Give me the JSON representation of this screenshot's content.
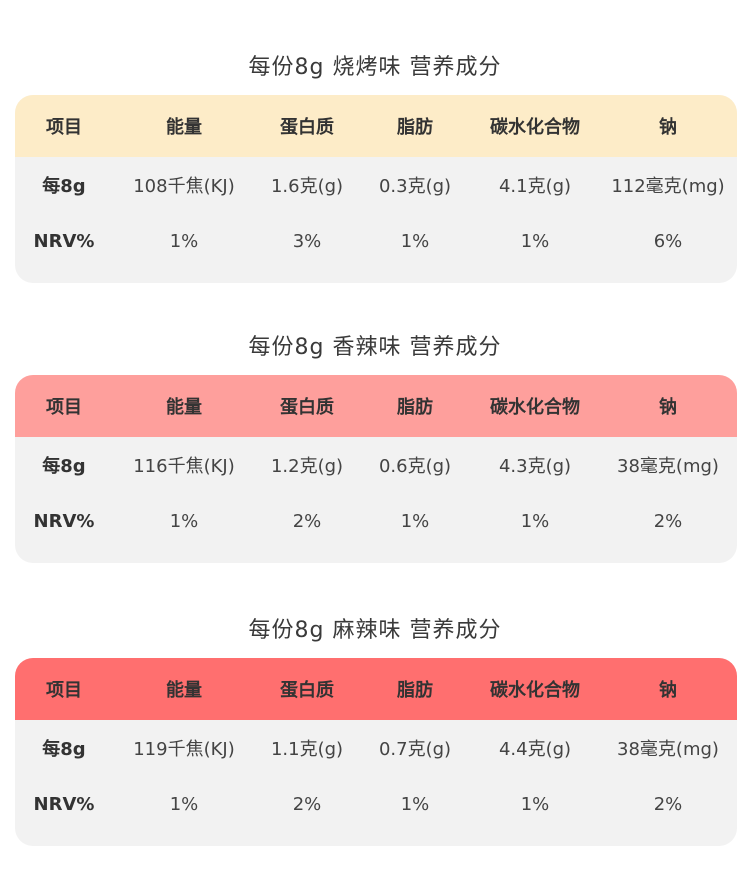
{
  "tables": [
    {
      "title": "每份8g 烧烤味 营养成分",
      "header_color": "#fdecc8",
      "headers": [
        "项目",
        "能量",
        "蛋白质",
        "脂肪",
        "碳水化合物",
        "钠"
      ],
      "rows": [
        [
          "每8g",
          "108千焦(KJ)",
          "1.6克(g)",
          "0.3克(g)",
          "4.1克(g)",
          "112毫克(mg)"
        ],
        [
          "NRV%",
          "1%",
          "3%",
          "1%",
          "1%",
          "6%"
        ]
      ]
    },
    {
      "title": "每份8g 香辣味 营养成分",
      "header_color": "#fe9f9c",
      "headers": [
        "项目",
        "能量",
        "蛋白质",
        "脂肪",
        "碳水化合物",
        "钠"
      ],
      "rows": [
        [
          "每8g",
          "116千焦(KJ)",
          "1.2克(g)",
          "0.6克(g)",
          "4.3克(g)",
          "38毫克(mg)"
        ],
        [
          "NRV%",
          "1%",
          "2%",
          "1%",
          "1%",
          "2%"
        ]
      ]
    },
    {
      "title": "每份8g 麻辣味 营养成分",
      "header_color": "#ff6f6f",
      "headers": [
        "项目",
        "能量",
        "蛋白质",
        "脂肪",
        "碳水化合物",
        "钠"
      ],
      "rows": [
        [
          "每8g",
          "119千焦(KJ)",
          "1.1克(g)",
          "0.7克(g)",
          "4.4克(g)",
          "38毫克(mg)"
        ],
        [
          "NRV%",
          "1%",
          "2%",
          "1%",
          "1%",
          "2%"
        ]
      ]
    }
  ]
}
